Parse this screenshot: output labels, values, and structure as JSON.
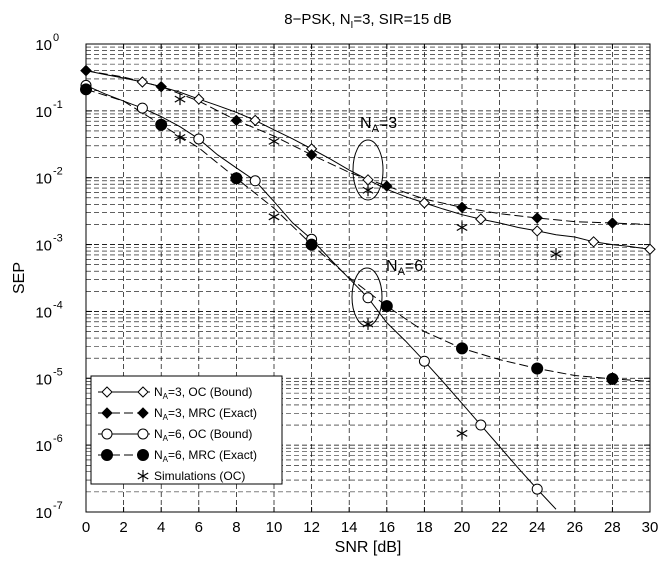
{
  "chart_data": {
    "type": "line",
    "title": "8−PSK, N",
    "title_sub": "I",
    "title_rest": "=3, SIR=15 dB",
    "xlabel": "SNR [dB]",
    "ylabel": "SEP",
    "xlim": [
      0,
      30
    ],
    "ylim_exponents": [
      -7,
      0
    ],
    "yscale": "log",
    "grid": true,
    "legend_position": "bottom-left",
    "x_tick_labels": [
      "0",
      "2",
      "4",
      "6",
      "8",
      "10",
      "12",
      "14",
      "16",
      "18",
      "20",
      "22",
      "24",
      "26",
      "28",
      "30"
    ],
    "y_tick_base": "10",
    "y_tick_exponents": [
      "0",
      "-1",
      "-2",
      "-3",
      "-4",
      "-5",
      "-6",
      "-7"
    ],
    "annotations": [
      {
        "prefix": "N",
        "sub": "A",
        "suffix": "=3",
        "x": 15,
        "y": 0.03
      },
      {
        "prefix": "N",
        "sub": "A",
        "suffix": "=6",
        "x": 15.8,
        "y": 0.00028
      }
    ],
    "series": [
      {
        "name_prefix": "N",
        "name_sub": "A",
        "name_suffix": "=3, OC (Bound)",
        "line": "solid",
        "marker": "diamond-open",
        "x": [
          0,
          1,
          2,
          3,
          4,
          5,
          6,
          7,
          8,
          9,
          10,
          11,
          12,
          13,
          14,
          15,
          16,
          17,
          18,
          19,
          20,
          21,
          22,
          23,
          24,
          25,
          26,
          27,
          28,
          29,
          30
        ],
        "y": [
          0.4,
          0.35,
          0.31,
          0.27,
          0.23,
          0.19,
          0.15,
          0.12,
          0.095,
          0.072,
          0.052,
          0.038,
          0.027,
          0.019,
          0.013,
          0.0093,
          0.0067,
          0.0052,
          0.0042,
          0.0034,
          0.0028,
          0.0024,
          0.0021,
          0.0018,
          0.0016,
          0.0014,
          0.0013,
          0.0011,
          0.001,
          0.00093,
          0.00085
        ],
        "marker_x": [
          0,
          3,
          6,
          9,
          12,
          15,
          18,
          21,
          24,
          27,
          30
        ],
        "marker_y": [
          0.4,
          0.27,
          0.15,
          0.072,
          0.027,
          0.0093,
          0.0042,
          0.0024,
          0.0016,
          0.0011,
          0.00085
        ]
      },
      {
        "name_prefix": "N",
        "name_sub": "A",
        "name_suffix": "=3, MRC (Exact)",
        "line": "dashed",
        "marker": "diamond-filled",
        "x": [
          0,
          2,
          4,
          6,
          8,
          10,
          12,
          14,
          16,
          18,
          20,
          22,
          24,
          26,
          28,
          30
        ],
        "y": [
          0.4,
          0.32,
          0.23,
          0.14,
          0.072,
          0.042,
          0.022,
          0.012,
          0.0075,
          0.0048,
          0.0036,
          0.0029,
          0.0025,
          0.0022,
          0.0021,
          0.002
        ],
        "marker_x": [
          0,
          4,
          8,
          12,
          16,
          20,
          24,
          28
        ],
        "marker_y": [
          0.4,
          0.23,
          0.072,
          0.022,
          0.0075,
          0.0036,
          0.0025,
          0.0021
        ]
      },
      {
        "name_prefix": "N",
        "name_sub": "A",
        "name_suffix": "=6, OC (Bound)",
        "line": "solid",
        "marker": "circle-open",
        "x": [
          0,
          1,
          2,
          3,
          4,
          5,
          6,
          7,
          8,
          9,
          10,
          11,
          12,
          13,
          14,
          15,
          16,
          17,
          18,
          19,
          20,
          21,
          22,
          23,
          24,
          25
        ],
        "y": [
          0.24,
          0.18,
          0.14,
          0.11,
          0.082,
          0.058,
          0.038,
          0.022,
          0.014,
          0.009,
          0.0044,
          0.0021,
          0.0012,
          0.0006,
          0.00031,
          0.00016,
          6.8e-05,
          3.6e-05,
          1.8e-05,
          8.8e-06,
          4.2e-06,
          2e-06,
          9.5e-07,
          4.5e-07,
          2.2e-07,
          1.1e-07
        ],
        "marker_x": [
          0,
          3,
          6,
          9,
          12,
          15,
          18,
          21,
          24
        ],
        "marker_y": [
          0.24,
          0.11,
          0.038,
          0.009,
          0.0012,
          0.00016,
          1.8e-05,
          2e-06,
          2.2e-07
        ]
      },
      {
        "name_prefix": "N",
        "name_sub": "A",
        "name_suffix": "=6, MRC (Exact)",
        "line": "dashed",
        "marker": "circle-filled",
        "x": [
          0,
          2,
          4,
          6,
          8,
          10,
          12,
          14,
          16,
          18,
          20,
          22,
          24,
          26,
          28,
          30
        ],
        "y": [
          0.21,
          0.14,
          0.062,
          0.028,
          0.0098,
          0.0035,
          0.001,
          0.00032,
          0.00012,
          5e-05,
          2.8e-05,
          1.9e-05,
          1.4e-05,
          1.1e-05,
          9.8e-06,
          9e-06
        ],
        "marker_x": [
          0,
          4,
          8,
          12,
          16,
          20,
          24,
          28
        ],
        "marker_y": [
          0.21,
          0.062,
          0.0098,
          0.001,
          0.00012,
          2.8e-05,
          1.4e-05,
          9.8e-06
        ]
      },
      {
        "name": "Simulations (OC)",
        "line": "none",
        "marker": "asterisk",
        "marker_x": [
          5,
          10,
          15,
          20,
          25
        ],
        "marker_y": [
          0.15,
          0.035,
          0.0065,
          0.0018,
          0.00072
        ]
      },
      {
        "name": "",
        "line": "none",
        "marker": "asterisk",
        "legend": false,
        "marker_x": [
          5,
          10,
          15,
          20
        ],
        "marker_y": [
          0.04,
          0.0026,
          6.5e-05,
          1.5e-06
        ]
      }
    ]
  }
}
